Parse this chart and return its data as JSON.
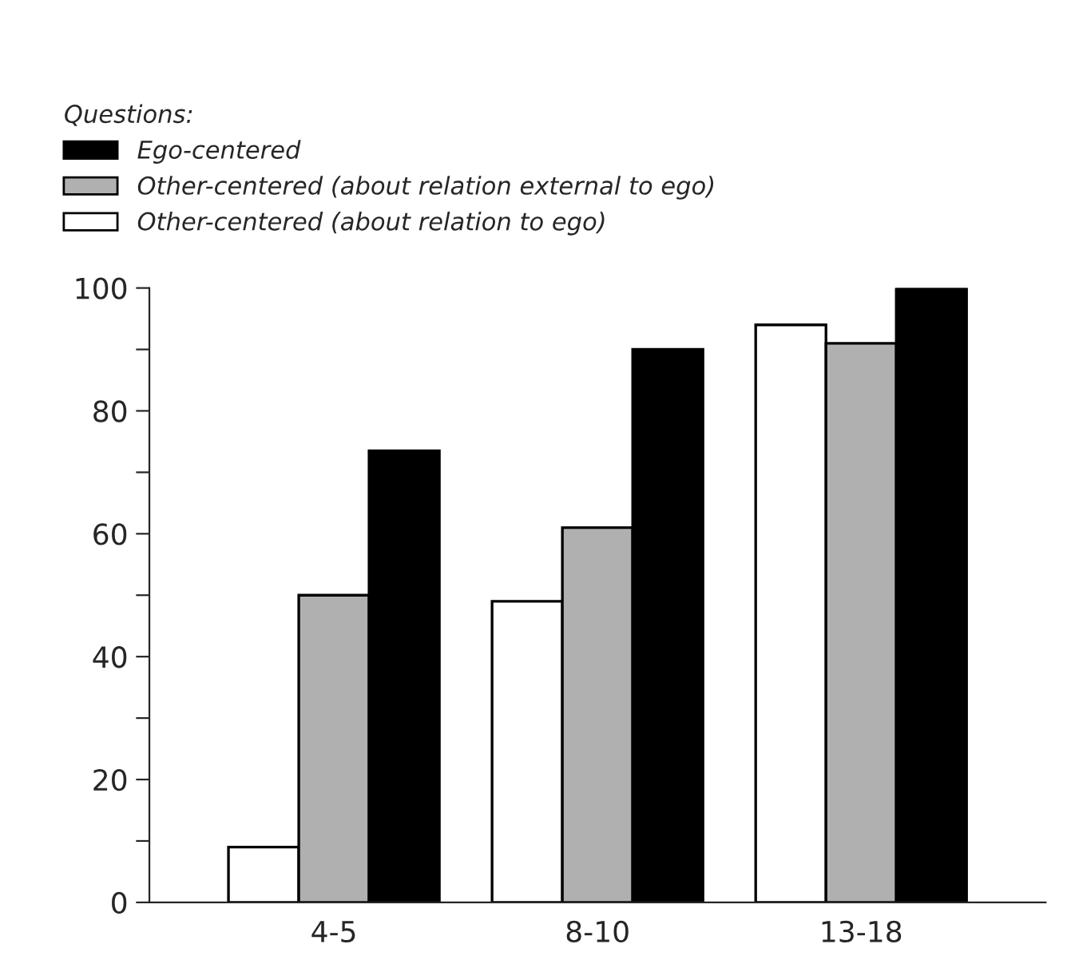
{
  "chart_data": {
    "type": "bar",
    "categories": [
      "4-5",
      "8-10",
      "13-18"
    ],
    "series": [
      {
        "name": "Other-centered (about relation to ego)",
        "color": "#ffffff",
        "values": [
          9,
          49,
          94
        ]
      },
      {
        "name": "Other-centered (about relation external to ego)",
        "color": "#b0b0b0",
        "values": [
          50,
          61,
          91
        ]
      },
      {
        "name": "Ego-centered",
        "color": "#000000",
        "values": [
          73.5,
          90,
          100
        ]
      }
    ],
    "legend_title": "Questions:",
    "legend": "top left",
    "ylim": [
      0,
      100
    ],
    "yticks": [
      0,
      {
        "value": 10,
        "label": null
      },
      20,
      {
        "value": 30,
        "label": null
      },
      40,
      {
        "value": 50,
        "label": null
      },
      60,
      {
        "value": 70,
        "label": null
      },
      80,
      {
        "value": 90,
        "label": null
      },
      100
    ],
    "grid": false
  }
}
